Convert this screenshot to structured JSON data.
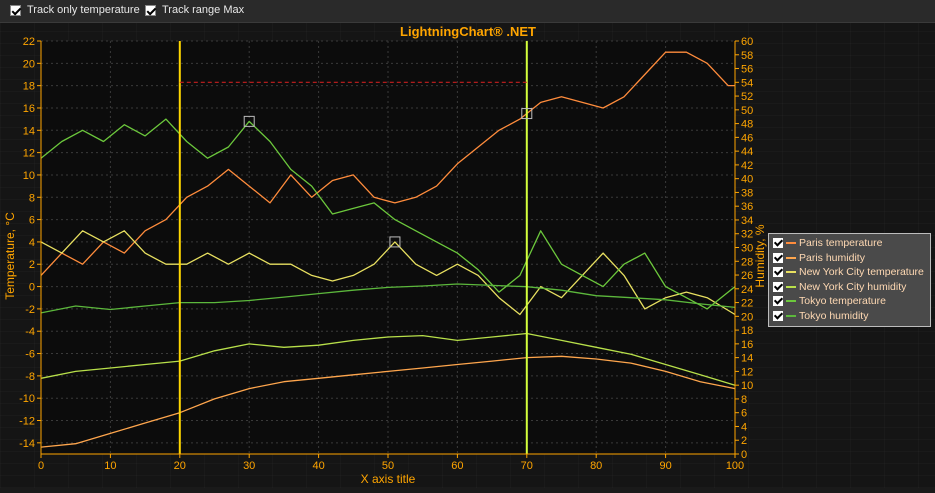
{
  "toolbar": {
    "track_only_temperature": "Track only temperature",
    "track_range_max": "Track range Max"
  },
  "chart_data": {
    "type": "line",
    "title": "LightningChart® .NET",
    "xlabel": "X axis title",
    "ylabel_left": "Temperature, °C",
    "ylabel_right": "Humidity, %",
    "xlim": [
      0,
      100
    ],
    "ylim_left": [
      -15,
      22
    ],
    "ylim_right": [
      0,
      60
    ],
    "x_ticks": [
      0,
      10,
      20,
      30,
      40,
      50,
      60,
      70,
      80,
      90,
      100
    ],
    "y_left_ticks": [
      -14,
      -12,
      -10,
      -8,
      -6,
      -4,
      -2,
      0,
      2,
      4,
      6,
      8,
      10,
      12,
      14,
      16,
      18,
      20,
      22
    ],
    "y_right_ticks": [
      0,
      2,
      4,
      6,
      8,
      10,
      12,
      14,
      16,
      18,
      20,
      22,
      24,
      26,
      28,
      30,
      32,
      34,
      36,
      38,
      40,
      42,
      44,
      46,
      48,
      50,
      52,
      54,
      56,
      58,
      60
    ],
    "grid": true,
    "legend_position": "right",
    "cursor_lines_x": [
      20,
      70
    ],
    "tracked_range_max_temperature": 18.3,
    "series": [
      {
        "name": "Paris temperature",
        "axis": "left",
        "color": "#ff8c3c",
        "x": [
          0,
          3,
          6,
          9,
          12,
          15,
          18,
          21,
          24,
          27,
          30,
          33,
          36,
          39,
          42,
          45,
          48,
          51,
          54,
          57,
          60,
          63,
          66,
          69,
          72,
          75,
          78,
          81,
          84,
          87,
          90,
          93,
          96,
          99,
          100
        ],
        "values": [
          1,
          3,
          2,
          4,
          3,
          5,
          6,
          8,
          9,
          10.5,
          9,
          7.5,
          10,
          8,
          9.5,
          10,
          8,
          7.5,
          8,
          9,
          11,
          12.5,
          14,
          15,
          16.5,
          17,
          16.5,
          16,
          17,
          19,
          21,
          21,
          20,
          18,
          18
        ]
      },
      {
        "name": "Paris humidity",
        "axis": "right",
        "color": "#ffa64d",
        "x": [
          0,
          5,
          10,
          15,
          20,
          25,
          30,
          35,
          40,
          45,
          50,
          55,
          60,
          65,
          70,
          75,
          80,
          85,
          90,
          95,
          100
        ],
        "values": [
          1,
          1.5,
          3,
          4.5,
          6,
          8,
          9.5,
          10.5,
          11,
          11.5,
          12,
          12.5,
          13,
          13.5,
          14,
          14.2,
          13.8,
          13.2,
          12,
          10.5,
          9.5
        ]
      },
      {
        "name": "New York City temperature",
        "axis": "left",
        "color": "#e8e060",
        "x": [
          0,
          3,
          6,
          9,
          12,
          15,
          18,
          21,
          24,
          27,
          30,
          33,
          36,
          39,
          42,
          45,
          48,
          51,
          54,
          57,
          60,
          63,
          66,
          69,
          72,
          75,
          78,
          81,
          84,
          87,
          90,
          93,
          96,
          100
        ],
        "values": [
          4,
          3,
          5,
          4,
          5,
          3,
          2,
          2,
          3,
          2,
          3,
          2,
          2,
          1,
          0.5,
          1,
          2,
          4,
          2,
          1,
          2,
          1,
          -1,
          -2.5,
          0,
          -1,
          1,
          3,
          1,
          -2,
          -1,
          -0.5,
          -1,
          -2.5
        ]
      },
      {
        "name": "New York City humidity",
        "axis": "right",
        "color": "#b8e04a",
        "x": [
          0,
          5,
          10,
          15,
          20,
          25,
          30,
          35,
          40,
          45,
          50,
          55,
          60,
          65,
          70,
          75,
          80,
          85,
          90,
          95,
          100
        ],
        "values": [
          11,
          12,
          12.5,
          13,
          13.5,
          15,
          16,
          15.5,
          15.8,
          16.5,
          17,
          17.2,
          16.5,
          17,
          17.5,
          16.5,
          15.5,
          14.5,
          13,
          11.5,
          10
        ]
      },
      {
        "name": "Tokyo temperature",
        "axis": "left",
        "color": "#6cc83c",
        "x": [
          0,
          3,
          6,
          9,
          12,
          15,
          18,
          21,
          24,
          27,
          30,
          33,
          36,
          39,
          42,
          45,
          48,
          51,
          54,
          57,
          60,
          63,
          66,
          69,
          72,
          75,
          78,
          81,
          84,
          87,
          90,
          93,
          96,
          100
        ],
        "values": [
          11.5,
          13,
          14,
          13,
          14.5,
          13.5,
          15,
          13,
          11.5,
          12.5,
          14.8,
          13,
          10.5,
          9,
          6.5,
          7,
          7.5,
          6,
          5,
          4,
          3,
          1.5,
          -0.5,
          1,
          5,
          2,
          1,
          0,
          2,
          3,
          0,
          -1,
          -2,
          0
        ]
      },
      {
        "name": "Tokyo humidity",
        "axis": "right",
        "color": "#5cb83c",
        "x": [
          0,
          5,
          10,
          15,
          20,
          25,
          30,
          35,
          40,
          45,
          50,
          55,
          60,
          65,
          70,
          75,
          80,
          85,
          90,
          95,
          100
        ],
        "values": [
          20.5,
          21.5,
          21,
          21.5,
          22,
          22,
          22.3,
          22.8,
          23.3,
          23.8,
          24.2,
          24.4,
          24.7,
          24.5,
          24.3,
          23.8,
          23,
          22.7,
          22.4,
          21.8,
          21.3
        ]
      }
    ]
  }
}
